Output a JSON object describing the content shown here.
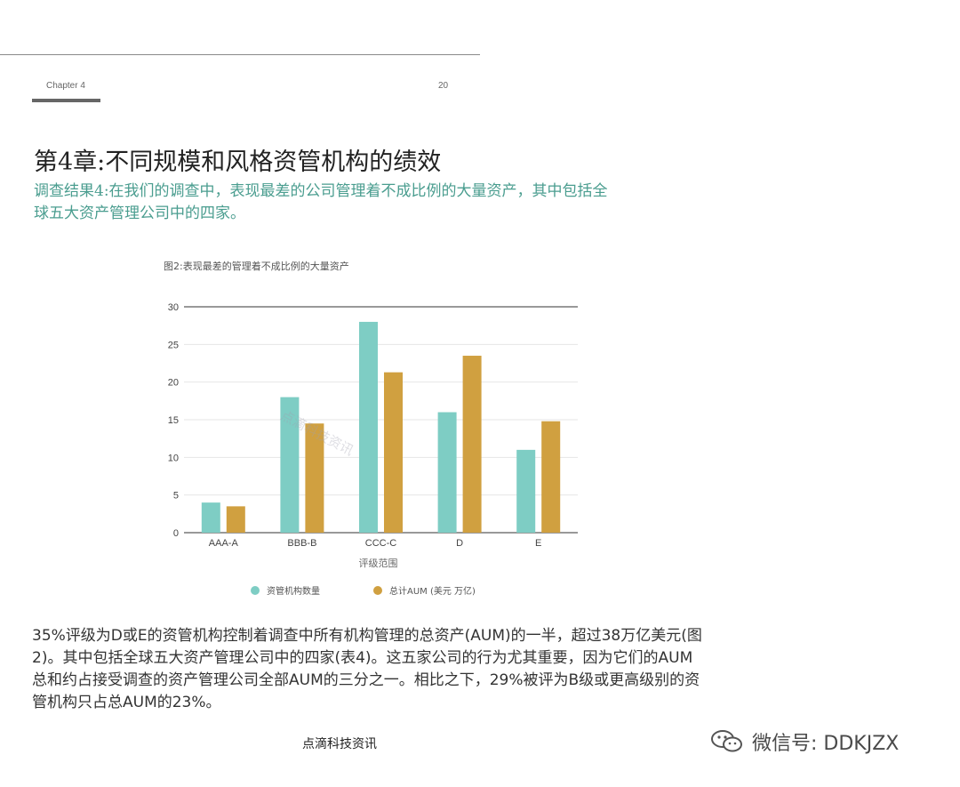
{
  "header": {
    "chapter_label": "Chapter 4",
    "page_number": "20"
  },
  "title": "第4章:不同规模和风格资管机构的绩效",
  "finding": "调查结果4:在我们的调查中，表现最差的公司管理着不成比例的大量资产，其中包括全球五大资产管理公司中的四家。",
  "figure": {
    "caption": "图2:表现最差的管理着不成比例的大量资产",
    "watermark": "点滴科技资讯"
  },
  "chart_data": {
    "type": "bar",
    "title": "图2:表现最差的管理着不成比例的大量资产",
    "xlabel": "评级范围",
    "ylabel": "",
    "categories": [
      "AAA-A",
      "BBB-B",
      "CCC-C",
      "D",
      "E"
    ],
    "series": [
      {
        "name": "资管机构数量",
        "color": "#7ecdc4",
        "values": [
          4,
          18,
          28,
          16,
          11
        ]
      },
      {
        "name": "总计AUM (美元 万亿)",
        "color": "#d0a040",
        "values": [
          3.5,
          14.5,
          21.3,
          23.5,
          14.8
        ]
      }
    ],
    "ylim": [
      0,
      30
    ],
    "yticks": [
      0,
      5,
      10,
      15,
      20,
      25,
      30
    ],
    "grid": true,
    "legend": "bottom"
  },
  "body": "35%评级为D或E的资管机构控制着调查中所有机构管理的总资产(AUM)的一半，超过38万亿美元(图2)。其中包括全球五大资产管理公司中的四家(表4)。这五家公司的行为尤其重要，因为它们的AUM总和约占接受调查的资产管理公司全部AUM的三分之一。相比之下，29%被评为B级或更高级别的资管机构只占总AUM的23%。",
  "footer": {
    "text": "点滴科技资讯"
  },
  "wechat": {
    "icon": "wechat-icon",
    "label": "微信号: DDKJZX"
  }
}
